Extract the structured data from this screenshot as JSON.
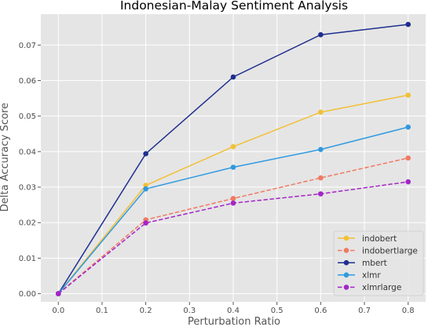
{
  "chart_data": {
    "type": "line",
    "title": "Indonesian-Malay Sentiment Analysis",
    "xlabel": "Perturbation Ratio",
    "ylabel": "Delta Accuracy Score",
    "x": [
      0.0,
      0.2,
      0.4,
      0.6,
      0.8
    ],
    "xlim": [
      -0.04,
      0.84
    ],
    "ylim": [
      -0.0023,
      0.0787
    ],
    "xticks": [
      0.0,
      0.1,
      0.2,
      0.3,
      0.4,
      0.5,
      0.6,
      0.7,
      0.8
    ],
    "xtick_labels": [
      "0.0",
      "0.1",
      "0.2",
      "0.3",
      "0.4",
      "0.5",
      "0.6",
      "0.7",
      "0.8"
    ],
    "yticks": [
      0.0,
      0.01,
      0.02,
      0.03,
      0.04,
      0.05,
      0.06,
      0.07
    ],
    "ytick_labels": [
      "0.00",
      "0.01",
      "0.02",
      "0.03",
      "0.04",
      "0.05",
      "0.06",
      "0.07"
    ],
    "grid": true,
    "legend_position": "bottom-right",
    "background_color": "#e5e5e5",
    "series": [
      {
        "name": "indobert",
        "values": [
          0.0,
          0.0305,
          0.0414,
          0.0511,
          0.0559
        ],
        "color": "#f2c037",
        "dashed": false
      },
      {
        "name": "indobertlarge",
        "values": [
          0.0,
          0.0208,
          0.0268,
          0.0326,
          0.0382
        ],
        "color": "#f07a62",
        "dashed": true
      },
      {
        "name": "mbert",
        "values": [
          0.0,
          0.0394,
          0.061,
          0.0729,
          0.0758
        ],
        "color": "#1f2f8f",
        "dashed": false
      },
      {
        "name": "xlmr",
        "values": [
          0.0,
          0.0295,
          0.0356,
          0.0406,
          0.0469
        ],
        "color": "#2f9ae0",
        "dashed": false
      },
      {
        "name": "xlmrlarge",
        "values": [
          0.0,
          0.0199,
          0.0255,
          0.0281,
          0.0315
        ],
        "color": "#a425c8",
        "dashed": true
      }
    ]
  }
}
